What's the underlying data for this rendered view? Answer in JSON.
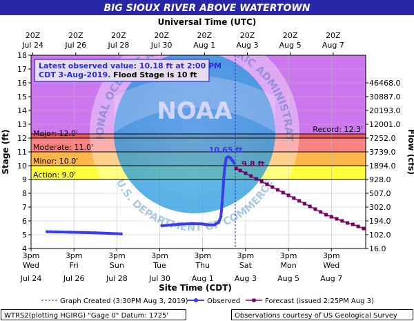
{
  "title": "BIG SIOUX RIVER ABOVE WATERTOWN",
  "top_axis_title": "Universal Time (UTC)",
  "bottom_axis_title": "Site Time (CDT)",
  "left_axis_title": "Stage (ft)",
  "right_axis_title": "Flow (cfs)",
  "top_ticks": [
    {
      "l1": "20Z",
      "l2": "Jul 24"
    },
    {
      "l1": "20Z",
      "l2": "Jul 26"
    },
    {
      "l1": "20Z",
      "l2": "Jul 28"
    },
    {
      "l1": "20Z",
      "l2": "Jul 30"
    },
    {
      "l1": "20Z",
      "l2": "Aug 1"
    },
    {
      "l1": "20Z",
      "l2": "Aug 3"
    },
    {
      "l1": "20Z",
      "l2": "Aug 5"
    },
    {
      "l1": "20Z",
      "l2": "Aug 7"
    }
  ],
  "bottom_ticks": [
    {
      "l1": "3pm",
      "l2": "Wed",
      "l3": "Jul 24"
    },
    {
      "l1": "3pm",
      "l2": "Fri",
      "l3": "Jul 26"
    },
    {
      "l1": "3pm",
      "l2": "Sun",
      "l3": "Jul 28"
    },
    {
      "l1": "3pm",
      "l2": "Tue",
      "l3": "Jul 30"
    },
    {
      "l1": "3pm",
      "l2": "Thu",
      "l3": "Aug 1"
    },
    {
      "l1": "3pm",
      "l2": "Sat",
      "l3": "Aug 3"
    },
    {
      "l1": "3pm",
      "l2": "Mon",
      "l3": "Aug 5"
    },
    {
      "l1": "3pm",
      "l2": "Wed",
      "l3": "Aug 7"
    }
  ],
  "info_box": {
    "line1": "Latest observed value: 10.18 ft at 2:00 PM",
    "line2_blue": "CDT 3-Aug-2019.",
    "line2_black": " Flood Stage is 10 ft"
  },
  "legend": {
    "created": "Graph Created (3:30PM Aug 3, 2019)",
    "observed": "Observed",
    "forecast": "Forecast (issued 2:25PM Aug 3)"
  },
  "footer": {
    "left": "WTRS2(plotting HGIRG) \"Gage 0\" Datum: 1725'",
    "right": "Observations courtesy of US Geological Survey"
  },
  "watermark": {
    "logo_text": "NOAA",
    "ring_top": "NATIONAL OCEANIC AND ATMOSPHERIC ADMINISTRATION",
    "ring_bottom": "U.S. DEPARTMENT OF COMMERCE"
  },
  "colors": {
    "title_bar": "#2626a6",
    "record_zone": "#cc77ee",
    "major_zone": "#e85a5a",
    "moderate_zone": "#f78282",
    "minor_zone": "#fdb64a",
    "action_zone": "#ffff3c",
    "observed": "#3a3aee",
    "forecast": "#770066"
  },
  "chart_data": {
    "type": "line",
    "x_unit": "days since 3pm CDT Jul 24, 2019",
    "xlim": [
      0,
      15.6
    ],
    "ylim": [
      4,
      18
    ],
    "yticks": [
      4,
      5,
      6,
      7,
      8,
      9,
      10,
      11,
      12,
      13,
      14,
      15,
      16,
      17,
      18
    ],
    "flow_ticks": [
      {
        "stage": 4,
        "label": "16.0"
      },
      {
        "stage": 5,
        "label": "102.0"
      },
      {
        "stage": 6,
        "label": "194.0"
      },
      {
        "stage": 7,
        "label": "302.0"
      },
      {
        "stage": 8,
        "label": "507.0"
      },
      {
        "stage": 9,
        "label": "928.0"
      },
      {
        "stage": 10,
        "label": "1894.0"
      },
      {
        "stage": 11,
        "label": "3739.0"
      },
      {
        "stage": 12,
        "label": "7252.0"
      },
      {
        "stage": 13,
        "label": "12001.0"
      },
      {
        "stage": 14,
        "label": "20193.0"
      },
      {
        "stage": 15,
        "label": "30887.0"
      },
      {
        "stage": 16,
        "label": "46468.0"
      }
    ],
    "flood_categories": [
      {
        "name": "Action",
        "label": "Action: 9.0'",
        "from": 9,
        "to": 10
      },
      {
        "name": "Minor",
        "label": "Minor: 10.0'",
        "from": 10,
        "to": 11
      },
      {
        "name": "Moderate",
        "label": "Moderate: 11.0'",
        "from": 11,
        "to": 12
      },
      {
        "name": "Major",
        "label": "Major: 12.0'",
        "from": 12,
        "to": 18
      }
    ],
    "record": {
      "value": 12.3,
      "label": "Record: 12.3'"
    },
    "graph_created_x": 9.52,
    "peak_label": "10.65 ft",
    "forecast_label": "9.8 ft",
    "series": [
      {
        "name": "Observed",
        "points": [
          [
            0.75,
            5.22
          ],
          [
            1.2,
            5.2
          ],
          [
            1.8,
            5.18
          ],
          [
            2.4,
            5.16
          ],
          [
            3.0,
            5.14
          ],
          [
            3.6,
            5.1
          ],
          [
            4.2,
            5.06
          ],
          [
            6.1,
            5.65
          ],
          [
            6.5,
            5.7
          ],
          [
            7.0,
            5.77
          ],
          [
            7.5,
            5.8
          ],
          [
            8.0,
            5.78
          ],
          [
            8.3,
            5.7
          ],
          [
            8.55,
            5.72
          ],
          [
            8.75,
            5.9
          ],
          [
            8.85,
            6.3
          ],
          [
            8.9,
            7.2
          ],
          [
            8.95,
            8.3
          ],
          [
            9.0,
            9.4
          ],
          [
            9.05,
            10.1
          ],
          [
            9.1,
            10.55
          ],
          [
            9.2,
            10.65
          ],
          [
            9.3,
            10.55
          ],
          [
            9.4,
            10.35
          ],
          [
            9.48,
            10.18
          ]
        ]
      },
      {
        "name": "Forecast",
        "points": [
          [
            9.56,
            9.8
          ],
          [
            9.75,
            9.65
          ],
          [
            10.0,
            9.45
          ],
          [
            10.25,
            9.25
          ],
          [
            10.5,
            9.05
          ],
          [
            10.75,
            8.85
          ],
          [
            11.0,
            8.65
          ],
          [
            11.25,
            8.45
          ],
          [
            11.5,
            8.25
          ],
          [
            11.75,
            8.05
          ],
          [
            12.0,
            7.85
          ],
          [
            12.25,
            7.65
          ],
          [
            12.5,
            7.45
          ],
          [
            12.75,
            7.25
          ],
          [
            13.0,
            7.05
          ],
          [
            13.25,
            6.85
          ],
          [
            13.5,
            6.65
          ],
          [
            13.75,
            6.45
          ],
          [
            14.0,
            6.3
          ],
          [
            14.25,
            6.15
          ],
          [
            14.5,
            6.0
          ],
          [
            14.75,
            5.85
          ],
          [
            15.0,
            5.75
          ],
          [
            15.25,
            5.6
          ],
          [
            15.5,
            5.45
          ]
        ]
      }
    ],
    "legend_position": "bottom"
  }
}
